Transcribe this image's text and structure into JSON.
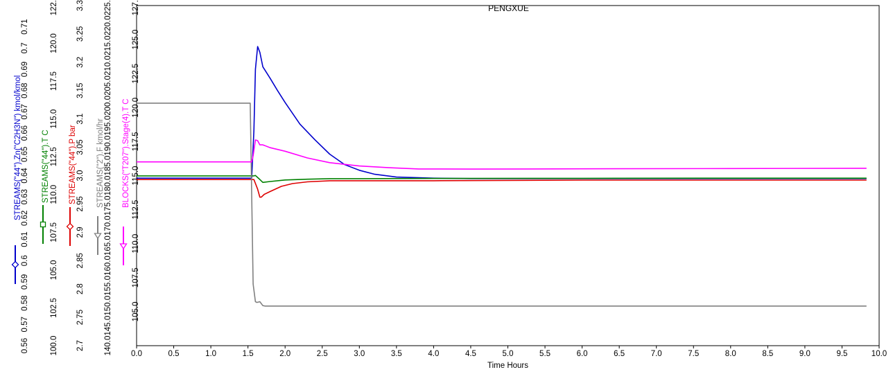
{
  "chart_data": {
    "type": "line",
    "title": "PENGXUE",
    "xlabel": "Time Hours",
    "xlim": [
      0,
      10
    ],
    "x_ticks": [
      "0.0",
      "0.5",
      "1.0",
      "1.5",
      "2.0",
      "2.5",
      "3.0",
      "3.5",
      "4.0",
      "4.5",
      "5.0",
      "5.5",
      "6.0",
      "6.5",
      "7.0",
      "7.5",
      "8.0",
      "8.5",
      "9.0",
      "9.5",
      "10.0"
    ],
    "grid": false,
    "axes": [
      {
        "label": "STREAMS(\"44\").Zn(\"C2H3N\") kmol/kmol",
        "color": "#0000cc",
        "marker": "diamond",
        "ylim": [
          0.56,
          0.72
        ],
        "ticks": [
          "0.56",
          "0.57",
          "0.58",
          "0.59",
          "0.6",
          "0.61",
          "0.62",
          "0.63",
          "0.64",
          "0.65",
          "0.66",
          "0.67",
          "0.68",
          "0.69",
          "0.7",
          "0.71"
        ]
      },
      {
        "label": "STREAMS(\"44\").T C",
        "color": "#008000",
        "marker": "square",
        "ylim": [
          100.0,
          122.5
        ],
        "ticks": [
          "100.0",
          "102.5",
          "105.0",
          "107.5",
          "110.0",
          "112.5",
          "115.0",
          "117.5",
          "120.0",
          "122.5"
        ]
      },
      {
        "label": "STREAMS(\"44\").P bar",
        "color": "#dd0000",
        "marker": "diamond",
        "ylim": [
          2.7,
          3.3
        ],
        "ticks": [
          "2.7",
          "2.75",
          "2.8",
          "2.85",
          "2.9",
          "2.95",
          "3.0",
          "3.05",
          "3.1",
          "3.15",
          "3.2",
          "3.25",
          "3.3"
        ]
      },
      {
        "label": "STREAMS(\"2\").F kmol/hr",
        "color": "#808080",
        "marker": "triangle-down",
        "ylim": [
          140.0,
          225.0
        ],
        "ticks": [
          "140.0",
          "145.0",
          "150.0",
          "155.0",
          "160.0",
          "165.0",
          "170.0",
          "175.0",
          "180.0",
          "185.0",
          "190.0",
          "195.0",
          "200.0",
          "205.0",
          "210.0",
          "215.0",
          "220.0",
          "225.0"
        ]
      },
      {
        "label": "BLOCKS(\"T207\").Stage(4).T C",
        "color": "#ff00ff",
        "marker": "triangle-down",
        "ylim": [
          102.5,
          127.5
        ],
        "ticks": [
          "105.0",
          "107.5",
          "110.0",
          "112.5",
          "115.0",
          "117.5",
          "120.0",
          "122.5",
          "125.0",
          "127.5"
        ]
      }
    ],
    "series": [
      {
        "name": "STREAMS(\"44\").Zn(\"C2H3N\") kmol/kmol",
        "axis": 0,
        "color": "#0000cc",
        "x": [
          0,
          1.55,
          1.58,
          1.6,
          1.63,
          1.66,
          1.7,
          1.8,
          1.9,
          2.0,
          2.2,
          2.4,
          2.6,
          2.8,
          3.0,
          3.2,
          3.5,
          4.0,
          4.5,
          6.0,
          8.0,
          9.83
        ],
        "y": [
          0.6388,
          0.6388,
          0.661,
          0.69,
          0.7007,
          0.698,
          0.6912,
          0.6857,
          0.6799,
          0.6744,
          0.6642,
          0.6569,
          0.6501,
          0.6452,
          0.6425,
          0.6407,
          0.6393,
          0.6388,
          0.6386,
          0.6386,
          0.6386,
          0.6386
        ]
      },
      {
        "name": "STREAMS(\"44\").T C",
        "axis": 1,
        "color": "#008000",
        "x": [
          0,
          1.58,
          1.6,
          1.65,
          1.7,
          1.8,
          2.0,
          2.3,
          2.6,
          3.0,
          4.0,
          6.0,
          8.0,
          9.83
        ],
        "y": [
          111.23,
          111.23,
          111.26,
          111.04,
          110.8,
          110.86,
          110.96,
          111.01,
          111.05,
          111.05,
          111.06,
          111.07,
          111.08,
          111.08
        ]
      },
      {
        "name": "STREAMS(\"44\").P bar",
        "axis": 2,
        "color": "#dd0000",
        "x": [
          0,
          1.58,
          1.63,
          1.66,
          1.68,
          1.72,
          1.8,
          1.95,
          2.1,
          2.3,
          2.6,
          3.0,
          4.0,
          6.0,
          8.0,
          9.83
        ],
        "y": [
          2.993,
          2.993,
          2.976,
          2.962,
          2.962,
          2.967,
          2.972,
          2.981,
          2.986,
          2.989,
          2.991,
          2.991,
          2.991,
          2.992,
          2.992,
          2.992
        ]
      },
      {
        "name": "STREAMS(\"2\").F kmol/hr",
        "axis": 3,
        "color": "#808080",
        "x": [
          0,
          1.53,
          1.55,
          1.57,
          1.6,
          1.62,
          1.66,
          1.7,
          1.73,
          2.0,
          4.0,
          6.0,
          8.0,
          9.83
        ],
        "y": [
          200.6,
          200.6,
          178.0,
          155.4,
          151.0,
          150.8,
          151.0,
          150.0,
          149.9,
          149.9,
          149.9,
          149.9,
          149.9,
          149.9
        ]
      },
      {
        "name": "BLOCKS(\"T207\").Stage(4).T C",
        "axis": 4,
        "color": "#ff00ff",
        "x": [
          0,
          1.55,
          1.57,
          1.6,
          1.63,
          1.66,
          1.7,
          1.8,
          2.0,
          2.3,
          2.6,
          3.0,
          3.4,
          3.8,
          4.5,
          6.0,
          8.0,
          9.83
        ],
        "y": [
          116.01,
          116.01,
          116.46,
          117.62,
          117.57,
          117.26,
          117.26,
          117.05,
          116.79,
          116.3,
          115.95,
          115.71,
          115.58,
          115.49,
          115.48,
          115.5,
          115.52,
          115.54
        ]
      }
    ]
  }
}
